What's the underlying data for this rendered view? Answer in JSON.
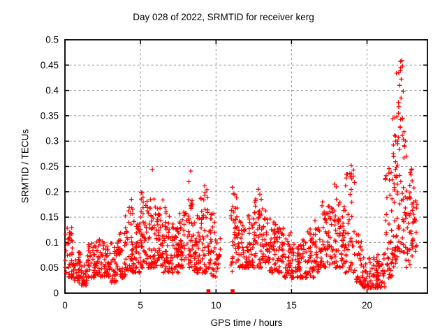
{
  "chart_data": {
    "type": "scatter",
    "title": "Day 028 of 2022, SRMTID for receiver kerg",
    "xlabel": "GPS time / hours",
    "ylabel": "SRMTID / TECUs",
    "xlim": [
      0,
      24
    ],
    "ylim": [
      0,
      0.5
    ],
    "xticks": [
      0,
      5,
      10,
      15,
      20
    ],
    "xtick_labels": [
      "0",
      "5",
      "10",
      "15",
      "20"
    ],
    "yticks": [
      0,
      0.05,
      0.1,
      0.15,
      0.2,
      0.25,
      0.3,
      0.35,
      0.4,
      0.45,
      0.5
    ],
    "ytick_labels": [
      "0",
      "0.05",
      "0.1",
      "0.15",
      "0.2",
      "0.25",
      "0.3",
      "0.35",
      "0.4",
      "0.45",
      "0.5"
    ],
    "grid": {
      "show": true,
      "style": "dashed",
      "color": "#909090"
    },
    "series": [
      {
        "name": "SRMTID",
        "marker": "plus",
        "color": "#ff0000",
        "cloud_seed": 20220128,
        "bin_format": [
          "x_start",
          "x_end",
          "y_min",
          "y_max",
          "count"
        ],
        "cloud_bins": [
          [
            0.0,
            0.5,
            0.03,
            0.13,
            40
          ],
          [
            0.5,
            1.0,
            0.02,
            0.1,
            35
          ],
          [
            1.0,
            1.5,
            0.015,
            0.08,
            30
          ],
          [
            1.5,
            2.0,
            0.03,
            0.1,
            35
          ],
          [
            2.0,
            2.5,
            0.03,
            0.11,
            35
          ],
          [
            2.5,
            3.0,
            0.03,
            0.1,
            35
          ],
          [
            3.0,
            3.5,
            0.02,
            0.11,
            35
          ],
          [
            3.5,
            4.0,
            0.03,
            0.12,
            35
          ],
          [
            4.0,
            4.5,
            0.04,
            0.17,
            40
          ],
          [
            4.5,
            5.0,
            0.04,
            0.15,
            40
          ],
          [
            5.0,
            5.5,
            0.05,
            0.2,
            45
          ],
          [
            5.5,
            6.0,
            0.05,
            0.2,
            45
          ],
          [
            6.0,
            6.5,
            0.05,
            0.19,
            45
          ],
          [
            6.5,
            7.0,
            0.04,
            0.17,
            40
          ],
          [
            7.0,
            7.5,
            0.04,
            0.15,
            40
          ],
          [
            7.5,
            8.0,
            0.05,
            0.16,
            40
          ],
          [
            8.0,
            8.5,
            0.05,
            0.21,
            40
          ],
          [
            8.5,
            9.0,
            0.04,
            0.16,
            40
          ],
          [
            9.0,
            9.5,
            0.04,
            0.2,
            40
          ],
          [
            9.5,
            10.0,
            0.03,
            0.17,
            35
          ],
          [
            10.0,
            10.3,
            0.04,
            0.12,
            15
          ],
          [
            11.0,
            11.5,
            0.04,
            0.2,
            40
          ],
          [
            11.5,
            12.0,
            0.05,
            0.15,
            35
          ],
          [
            12.0,
            12.5,
            0.05,
            0.17,
            40
          ],
          [
            12.5,
            13.0,
            0.05,
            0.2,
            40
          ],
          [
            13.0,
            13.5,
            0.06,
            0.18,
            40
          ],
          [
            13.5,
            14.0,
            0.04,
            0.15,
            40
          ],
          [
            14.0,
            14.5,
            0.04,
            0.13,
            35
          ],
          [
            14.5,
            15.0,
            0.03,
            0.12,
            35
          ],
          [
            15.0,
            15.5,
            0.03,
            0.1,
            35
          ],
          [
            15.5,
            16.0,
            0.03,
            0.11,
            35
          ],
          [
            16.0,
            16.5,
            0.03,
            0.13,
            35
          ],
          [
            16.5,
            17.0,
            0.04,
            0.15,
            35
          ],
          [
            17.0,
            17.5,
            0.05,
            0.19,
            38
          ],
          [
            17.5,
            18.0,
            0.05,
            0.21,
            38
          ],
          [
            18.0,
            18.5,
            0.05,
            0.18,
            38
          ],
          [
            18.5,
            19.2,
            0.04,
            0.25,
            45
          ],
          [
            19.2,
            19.7,
            0.015,
            0.12,
            30
          ],
          [
            19.7,
            20.5,
            0.01,
            0.07,
            48
          ],
          [
            20.5,
            21.2,
            0.01,
            0.08,
            48
          ],
          [
            21.2,
            21.7,
            0.03,
            0.25,
            40
          ],
          [
            21.7,
            22.0,
            0.05,
            0.35,
            35
          ],
          [
            22.0,
            22.5,
            0.08,
            0.46,
            50
          ],
          [
            22.5,
            23.0,
            0.05,
            0.25,
            40
          ],
          [
            23.0,
            23.3,
            0.08,
            0.21,
            20
          ]
        ],
        "points": [
          [
            5.79,
            0.244
          ],
          [
            8.33,
            0.241
          ],
          [
            8.2,
            0.22
          ],
          [
            9.25,
            0.212
          ],
          [
            9.4,
            0.204
          ],
          [
            11.08,
            0.209
          ],
          [
            11.15,
            0.196
          ],
          [
            12.8,
            0.205
          ],
          [
            12.9,
            0.195
          ],
          [
            4.4,
            0.185
          ],
          [
            17.85,
            0.215
          ],
          [
            18.7,
            0.235
          ],
          [
            18.95,
            0.252
          ],
          [
            19.1,
            0.243
          ],
          [
            21.9,
            0.3
          ],
          [
            21.95,
            0.434
          ],
          [
            22.3,
            0.459
          ],
          [
            22.15,
            0.41
          ],
          [
            22.4,
            0.398
          ],
          [
            22.25,
            0.385
          ],
          [
            22.1,
            0.368
          ],
          [
            22.35,
            0.345
          ],
          [
            22.2,
            0.328
          ],
          [
            22.55,
            0.3
          ],
          [
            22.6,
            0.27
          ],
          [
            13.0,
            0.185
          ]
        ]
      },
      {
        "name": "flag-markers",
        "marker": "filled-square",
        "color": "#ff0000",
        "points": [
          [
            9.5,
            0.004
          ],
          [
            11.1,
            0.004
          ]
        ]
      }
    ]
  }
}
